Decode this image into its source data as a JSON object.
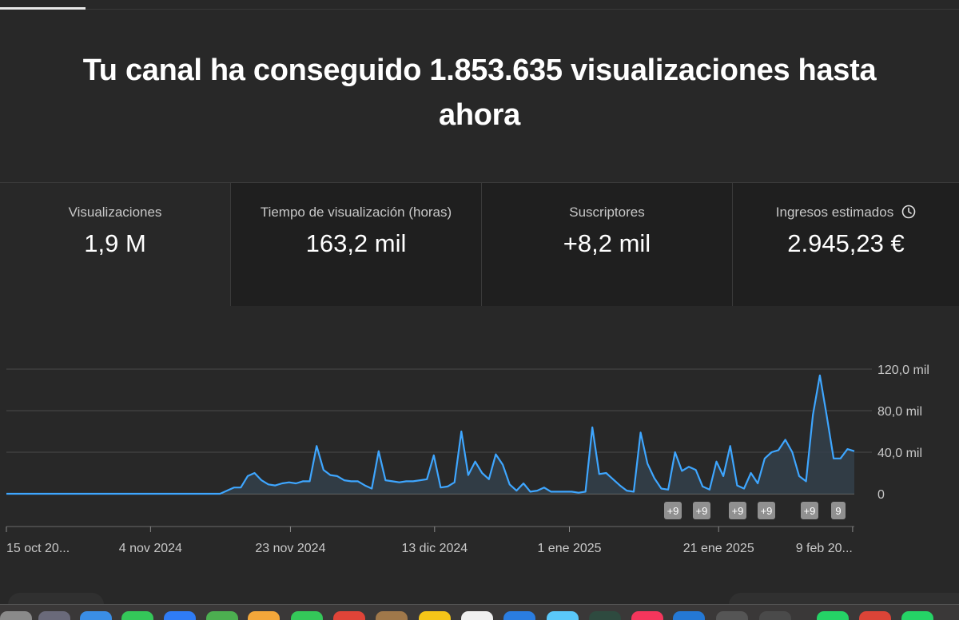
{
  "headline": "Tu canal ha conseguido 1.853.635 visualizaciones hasta ahora",
  "metrics": [
    {
      "label": "Visualizaciones",
      "value": "1,9 M"
    },
    {
      "label": "Tiempo de visualización (horas)",
      "value": "163,2 mil"
    },
    {
      "label": "Suscriptores",
      "value": "+8,2 mil"
    },
    {
      "label": "Ingresos estimados",
      "value": "2.945,23 €",
      "icon": "clock-icon"
    }
  ],
  "colors": {
    "background": "#282828",
    "line": "#3ea6ff",
    "area": "#33404a",
    "marker": "#909090"
  },
  "chart_data": {
    "type": "area",
    "x_tick_labels": [
      "15 oct 20...",
      "4 nov 2024",
      "23 nov 2024",
      "13 dic 2024",
      "1 ene 2025",
      "21 ene 2025",
      "9 feb 20..."
    ],
    "y_tick_labels": [
      "0",
      "40,0 mil",
      "80,0 mil",
      "120,0 mil"
    ],
    "ylim": [
      0,
      120000
    ],
    "grid": true,
    "annotations": [
      "+9",
      "+9",
      "+9",
      "+9",
      "+9",
      "9"
    ],
    "values": [
      0,
      0,
      0,
      0,
      0,
      0,
      0,
      0,
      0,
      0,
      0,
      0,
      0,
      0,
      0,
      0,
      0,
      0,
      0,
      0,
      0,
      0,
      0,
      0,
      0,
      0,
      0,
      0,
      0,
      0,
      0,
      0,
      3000,
      6000,
      6000,
      17000,
      20000,
      13000,
      9000,
      8000,
      10000,
      11000,
      10000,
      12000,
      12000,
      46000,
      23000,
      18000,
      17000,
      13000,
      12000,
      12000,
      8000,
      5000,
      41000,
      13000,
      12000,
      11000,
      12000,
      12000,
      13000,
      14000,
      37000,
      6000,
      7000,
      11000,
      60000,
      18000,
      31000,
      20000,
      14000,
      38000,
      28000,
      9000,
      3000,
      10000,
      2000,
      3000,
      6000,
      2000,
      2000,
      2000,
      2000,
      1000,
      2000,
      64000,
      19000,
      20000,
      14000,
      8000,
      3000,
      2000,
      59000,
      29000,
      15000,
      5000,
      4000,
      40000,
      22000,
      26000,
      23000,
      7000,
      4000,
      31000,
      17000,
      46000,
      8000,
      5000,
      20000,
      10000,
      34000,
      40000,
      42000,
      52000,
      40000,
      17000,
      12000,
      76000,
      114000,
      75000,
      34000,
      34000,
      43000,
      41000
    ]
  }
}
